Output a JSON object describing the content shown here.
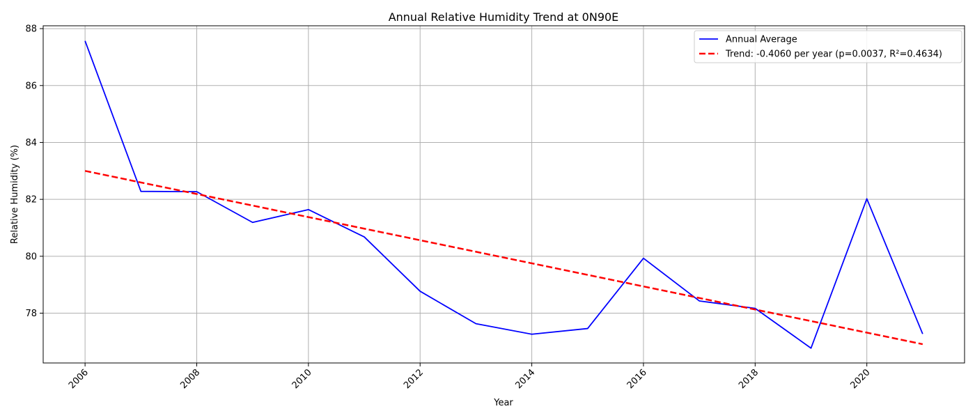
{
  "chart_data": {
    "type": "line",
    "title": "Annual Relative Humidity Trend at 0N90E",
    "xlabel": "Year",
    "ylabel": "Relative Humidity (%)",
    "xlim": [
      2005.25,
      2021.75
    ],
    "ylim": [
      76.25,
      88.1
    ],
    "x_ticks": [
      2006,
      2008,
      2010,
      2012,
      2014,
      2016,
      2018,
      2020
    ],
    "x_tick_labels": [
      "2006",
      "2008",
      "2010",
      "2012",
      "2014",
      "2016",
      "2018",
      "2020"
    ],
    "y_ticks": [
      78,
      80,
      82,
      84,
      86,
      88
    ],
    "y_tick_labels": [
      "78",
      "80",
      "82",
      "84",
      "86",
      "88"
    ],
    "grid": true,
    "legend_position": "top-right",
    "series": [
      {
        "name": "Annual Average",
        "color": "#0000ff",
        "style": "solid",
        "x": [
          2006,
          2007,
          2008,
          2009,
          2010,
          2011,
          2012,
          2013,
          2014,
          2015,
          2016,
          2017,
          2018,
          2019,
          2020,
          2021
        ],
        "y": [
          87.57,
          82.28,
          82.27,
          81.19,
          81.64,
          80.68,
          78.77,
          77.63,
          77.26,
          77.46,
          79.93,
          78.43,
          78.17,
          76.77,
          82.02,
          77.27
        ]
      },
      {
        "name": "Trend: -0.4060 per year (p=0.0037, R²=0.4634)",
        "color": "#ff0000",
        "style": "dashed",
        "x": [
          2006,
          2021
        ],
        "y": [
          83.0,
          76.91
        ]
      }
    ]
  }
}
